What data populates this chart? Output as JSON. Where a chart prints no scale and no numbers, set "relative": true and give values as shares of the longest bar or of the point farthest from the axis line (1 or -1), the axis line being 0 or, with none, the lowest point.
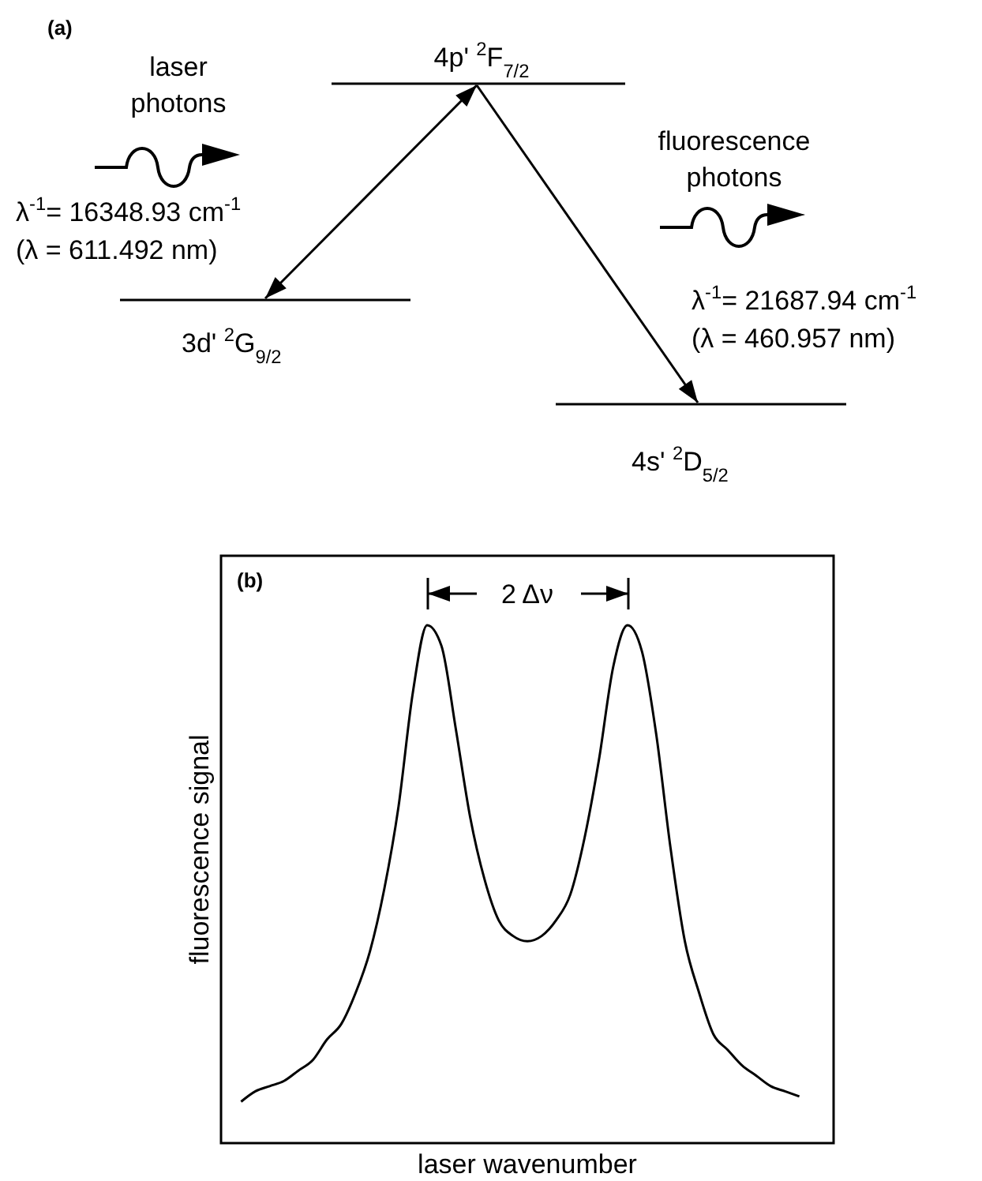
{
  "chart_data": [
    {
      "type": "other",
      "title": "(a)",
      "annotations": [
        "4p' $^{2}$F$_{7/2}$",
        "3d' $^{2}$G$_{9/2}$",
        "4s' $^{2}$D$_{5/2}$",
        "laser photons",
        "λ$^{-1}$= 16348.93 cm$^{-1}$",
        "(λ = 611.492 nm)",
        "fluorescence photons",
        "λ$^{-1}$= 21687.94 cm$^{-1}$",
        "(λ = 460.957 nm)"
      ]
    },
    {
      "type": "line",
      "title": "(b)",
      "relative": true,
      "xlabel": "laser wavenumber",
      "ylabel": "fluorescence signal",
      "color": "#000000",
      "annotations": [
        "2 Δν"
      ],
      "categories": [
        null,
        null,
        null,
        null,
        null,
        null,
        null,
        null,
        null,
        null,
        null,
        null,
        null,
        null,
        null,
        null,
        null,
        null,
        null,
        null,
        null,
        null,
        null,
        null,
        null,
        null,
        null,
        null,
        null,
        null,
        null,
        null,
        null,
        null,
        null,
        null,
        null,
        null,
        null,
        null
      ],
      "values": [
        0.08,
        0.1,
        0.11,
        0.12,
        0.14,
        0.16,
        0.2,
        0.23,
        0.29,
        0.37,
        0.49,
        0.65,
        0.87,
        1,
        0.96,
        0.8,
        0.63,
        0.51,
        0.43,
        0.4,
        0.39,
        0.4,
        0.43,
        0.48,
        0.59,
        0.74,
        0.92,
        1,
        0.95,
        0.79,
        0.57,
        0.39,
        0.29,
        0.21,
        0.18,
        0.15,
        0.13,
        0.11,
        0.1,
        0.09
      ]
    }
  ]
}
